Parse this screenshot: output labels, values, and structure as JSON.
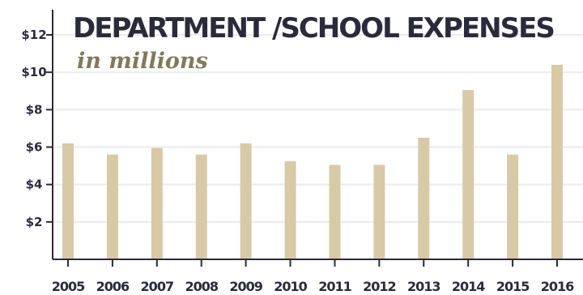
{
  "chart_data": {
    "type": "bar",
    "title": "DEPARTMENT /SCHOOL EXPENSES",
    "subtitle": "in millions",
    "xlabel": "",
    "ylabel": "",
    "categories": [
      "2005",
      "2006",
      "2007",
      "2008",
      "2009",
      "2010",
      "2011",
      "2012",
      "2013",
      "2014",
      "2015",
      "2016"
    ],
    "values": [
      6.2,
      5.6,
      5.95,
      5.6,
      6.2,
      5.25,
      5.05,
      5.05,
      6.5,
      9.05,
      5.6,
      10.4
    ],
    "yticks": [
      {
        "value": 2,
        "label": "$2"
      },
      {
        "value": 4,
        "label": "$4"
      },
      {
        "value": 6,
        "label": "$6"
      },
      {
        "value": 8,
        "label": "$8"
      },
      {
        "value": 10,
        "label": "$10"
      },
      {
        "value": 12,
        "label": "$12"
      }
    ],
    "ylim": [
      0,
      12.5
    ],
    "grid": true,
    "legend": "none",
    "colors": {
      "bar": "#d8caa6",
      "grid": "#ebebef",
      "axis": "#2b2a3d",
      "title": "#2b2a3d",
      "subtitle": "#83785a"
    }
  }
}
